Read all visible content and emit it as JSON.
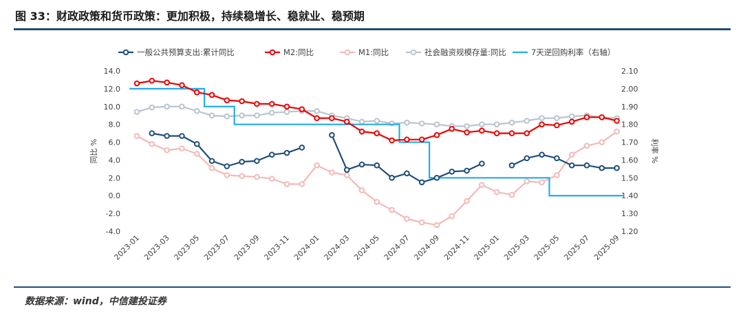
{
  "header": {
    "title": "图 33：财政政策和货币政策：更加积极，持续稳增长、稳就业、稳预期"
  },
  "footer": {
    "source": "数据来源：wind，中信建投证券"
  },
  "chart_data": {
    "type": "line",
    "title": "图 33：财政政策和货币政策：更加积极，持续稳增长、稳就业、稳预期",
    "ylabel": "同比 %",
    "y2label": "利率 %",
    "ylim": [
      -4.0,
      14.0
    ],
    "y2lim": [
      1.2,
      2.1
    ],
    "yticks": [
      "14.0",
      "12.0",
      "10.0",
      "8.0",
      "6.0",
      "4.0",
      "2.0",
      "0.0",
      "-2.0",
      "-4.0"
    ],
    "y2ticks": [
      "2.10",
      "2.00",
      "1.90",
      "1.80",
      "1.70",
      "1.60",
      "1.50",
      "1.40",
      "1.30",
      "1.20"
    ],
    "x": [
      "2023-01",
      "2023-02",
      "2023-03",
      "2023-04",
      "2023-05",
      "2023-06",
      "2023-07",
      "2023-08",
      "2023-09",
      "2023-10",
      "2023-11",
      "2023-12",
      "2024-01",
      "2024-02",
      "2024-03",
      "2024-04",
      "2024-05",
      "2024-06",
      "2024-07",
      "2024-08",
      "2024-09",
      "2024-10",
      "2024-11",
      "2024-12",
      "2025-01",
      "2025-02",
      "2025-03",
      "2025-04",
      "2025-05",
      "2025-06",
      "2025-07",
      "2025-08",
      "2025-09"
    ],
    "xtick_labels": [
      "2023-01",
      "2023-03",
      "2023-05",
      "2023-07",
      "2023-09",
      "2023-11",
      "2024-01",
      "2024-03",
      "2024-05",
      "2024-07",
      "2024-09",
      "2024-11",
      "2025-01",
      "2025-03",
      "2025-05",
      "2025-07",
      "2025-09"
    ],
    "legend_position": "top",
    "series": [
      {
        "name": "一般公共预算支出:累计同比",
        "color": "#1f4e79",
        "axis": "left",
        "marker": true,
        "values": [
          null,
          7.0,
          6.7,
          6.7,
          5.8,
          3.9,
          3.3,
          3.8,
          3.9,
          4.6,
          4.8,
          5.4,
          null,
          6.8,
          2.9,
          3.5,
          3.4,
          2.0,
          2.5,
          1.5,
          2.0,
          2.7,
          2.8,
          3.6,
          null,
          3.4,
          4.2,
          4.6,
          4.2,
          3.4,
          3.4,
          3.1,
          3.1
        ]
      },
      {
        "name": "M2:同比",
        "color": "#ee0000",
        "axis": "left",
        "marker": true,
        "values": [
          12.6,
          12.9,
          12.7,
          12.4,
          11.6,
          11.3,
          10.7,
          10.6,
          10.3,
          10.3,
          10.0,
          9.7,
          8.7,
          8.7,
          8.3,
          7.2,
          7.0,
          6.2,
          6.3,
          6.3,
          6.8,
          7.5,
          7.1,
          7.3,
          7.0,
          7.0,
          7.0,
          8.0,
          7.9,
          8.3,
          8.8,
          8.8,
          8.4
        ]
      },
      {
        "name": "M1:同比",
        "color": "#f4b8b8",
        "axis": "left",
        "marker": true,
        "values": [
          6.7,
          5.8,
          5.1,
          5.3,
          4.7,
          3.1,
          2.3,
          2.2,
          2.1,
          1.9,
          1.3,
          1.3,
          3.4,
          2.6,
          2.3,
          0.6,
          -0.7,
          -1.6,
          -2.6,
          -3.0,
          -3.3,
          -2.3,
          -0.6,
          1.2,
          0.4,
          0.1,
          1.6,
          1.5,
          2.3,
          4.6,
          5.6,
          6.0,
          7.2
        ]
      },
      {
        "name": "社会融资规模存量:同比",
        "color": "#b8c4d0",
        "axis": "left",
        "marker": true,
        "values": [
          9.4,
          9.9,
          10.0,
          10.0,
          9.5,
          9.0,
          8.9,
          9.0,
          9.0,
          9.3,
          9.4,
          9.5,
          9.5,
          9.0,
          8.7,
          8.3,
          8.4,
          8.1,
          8.2,
          8.1,
          8.0,
          7.8,
          7.8,
          8.0,
          8.0,
          8.2,
          8.4,
          8.7,
          8.7,
          8.9,
          9.0,
          8.8,
          8.7
        ]
      },
      {
        "name": "7天逆回购利率（右轴）",
        "color": "#22aaee",
        "axis": "right",
        "marker": false,
        "values": [
          2.0,
          2.0,
          2.0,
          2.0,
          2.0,
          1.9,
          1.9,
          1.8,
          1.8,
          1.8,
          1.8,
          1.8,
          1.8,
          1.8,
          1.8,
          1.8,
          1.8,
          1.8,
          1.7,
          1.7,
          1.5,
          1.5,
          1.5,
          1.5,
          1.5,
          1.5,
          1.5,
          1.5,
          1.4,
          1.4,
          1.4,
          1.4,
          1.4
        ]
      }
    ]
  }
}
